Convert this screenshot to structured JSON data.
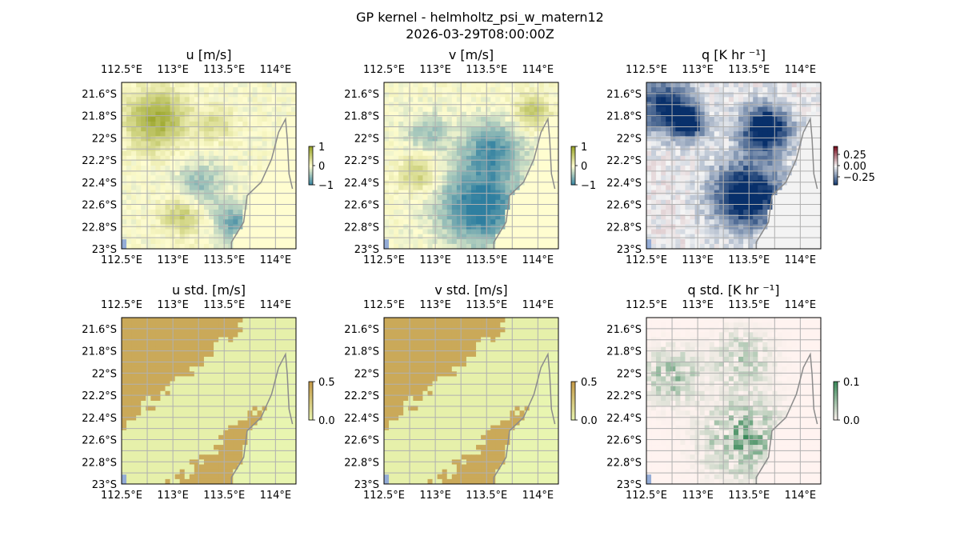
{
  "figure": {
    "title": "GP kernel - helmholtz_psi_w_matern12",
    "subtitle": "2026-03-29T08:00:00Z"
  },
  "chart_data": [
    {
      "type": "heatmap",
      "title": "u [m/s]",
      "xticks": [
        "112.5°E",
        "113°E",
        "113.5°E",
        "114°E"
      ],
      "yticks": [
        "21.6°S",
        "21.8°S",
        "22°S",
        "22.2°S",
        "22.4°S",
        "22.6°S",
        "22.8°S",
        "23°S"
      ],
      "x_range": [
        112.5,
        114.2
      ],
      "y_range": [
        -23.0,
        -21.5
      ],
      "colorbar": {
        "ticks": [
          "1",
          "0",
          "−1"
        ],
        "range": [
          -1,
          1
        ],
        "colormap": "olive-yellow-teal diverging"
      },
      "colors": [
        "#9aa52a",
        "#fffdd0",
        "#2f7fa0"
      ],
      "field": "u"
    },
    {
      "type": "heatmap",
      "title": "v [m/s]",
      "xticks": [
        "112.5°E",
        "113°E",
        "113.5°E",
        "114°E"
      ],
      "yticks": [
        "21.6°S",
        "21.8°S",
        "22°S",
        "22.2°S",
        "22.4°S",
        "22.6°S",
        "22.8°S",
        "23°S"
      ],
      "x_range": [
        112.5,
        114.2
      ],
      "y_range": [
        -23.0,
        -21.5
      ],
      "colorbar": {
        "ticks": [
          "1",
          "0",
          "−1"
        ],
        "range": [
          -1,
          1
        ],
        "colormap": "olive-yellow-teal diverging"
      },
      "colors": [
        "#9aa52a",
        "#fffdd0",
        "#2f7fa0"
      ],
      "field": "v"
    },
    {
      "type": "heatmap",
      "title": "q [K hr ⁻¹]",
      "xticks": [
        "112.5°E",
        "113°E",
        "113.5°E",
        "114°E"
      ],
      "yticks": [
        "21.6°S",
        "21.8°S",
        "22°S",
        "22.2°S",
        "22.4°S",
        "22.6°S",
        "22.8°S",
        "23°S"
      ],
      "x_range": [
        112.5,
        114.2
      ],
      "y_range": [
        -23.0,
        -21.5
      ],
      "colorbar": {
        "ticks": [
          "0.25",
          "0.00",
          "−0.25"
        ],
        "range": [
          -0.35,
          0.35
        ],
        "colormap": "red-white-blue diverging"
      },
      "colors": [
        "#7a1020",
        "#f5f5f5",
        "#08306b"
      ],
      "field": "q"
    },
    {
      "type": "heatmap",
      "title": "u std. [m/s]",
      "xticks": [
        "112.5°E",
        "113°E",
        "113.5°E",
        "114°E"
      ],
      "yticks": [
        "21.6°S",
        "21.8°S",
        "22°S",
        "22.2°S",
        "22.4°S",
        "22.6°S",
        "22.8°S",
        "23°S"
      ],
      "x_range": [
        112.5,
        114.2
      ],
      "y_range": [
        -23.0,
        -21.5
      ],
      "colorbar": {
        "ticks": [
          "0.5",
          "0.0"
        ],
        "range": [
          0,
          0.5
        ],
        "colormap": "brown-light-green sequential"
      },
      "colors": [
        "#e8f5b0",
        "#c49a48"
      ],
      "field": "ustd"
    },
    {
      "type": "heatmap",
      "title": "v std. [m/s]",
      "xticks": [
        "112.5°E",
        "113°E",
        "113.5°E",
        "114°E"
      ],
      "yticks": [
        "21.6°S",
        "21.8°S",
        "22°S",
        "22.2°S",
        "22.4°S",
        "22.6°S",
        "22.8°S",
        "23°S"
      ],
      "x_range": [
        112.5,
        114.2
      ],
      "y_range": [
        -23.0,
        -21.5
      ],
      "colorbar": {
        "ticks": [
          "0.5",
          "0.0"
        ],
        "range": [
          0,
          0.5
        ],
        "colormap": "brown-light-green sequential"
      },
      "colors": [
        "#e8f5b0",
        "#c49a48"
      ],
      "field": "vstd"
    },
    {
      "type": "heatmap",
      "title": "q std. [K hr ⁻¹]",
      "xticks": [
        "112.5°E",
        "113°E",
        "113.5°E",
        "114°E"
      ],
      "yticks": [
        "21.6°S",
        "21.8°S",
        "22°S",
        "22.2°S",
        "22.4°S",
        "22.6°S",
        "22.8°S",
        "23°S"
      ],
      "x_range": [
        112.5,
        114.2
      ],
      "y_range": [
        -23.0,
        -21.5
      ],
      "colorbar": {
        "ticks": [
          "0.1",
          "0.0"
        ],
        "range": [
          0,
          0.12
        ],
        "colormap": "pink-white-green sequential"
      },
      "colors": [
        "#fff3f0",
        "#3b8a5a"
      ],
      "field": "qstd"
    }
  ],
  "style": {
    "ocean_color": "#94acd6",
    "coast_color": "#8c8c8c",
    "grid_color": "#b0b0b0"
  }
}
